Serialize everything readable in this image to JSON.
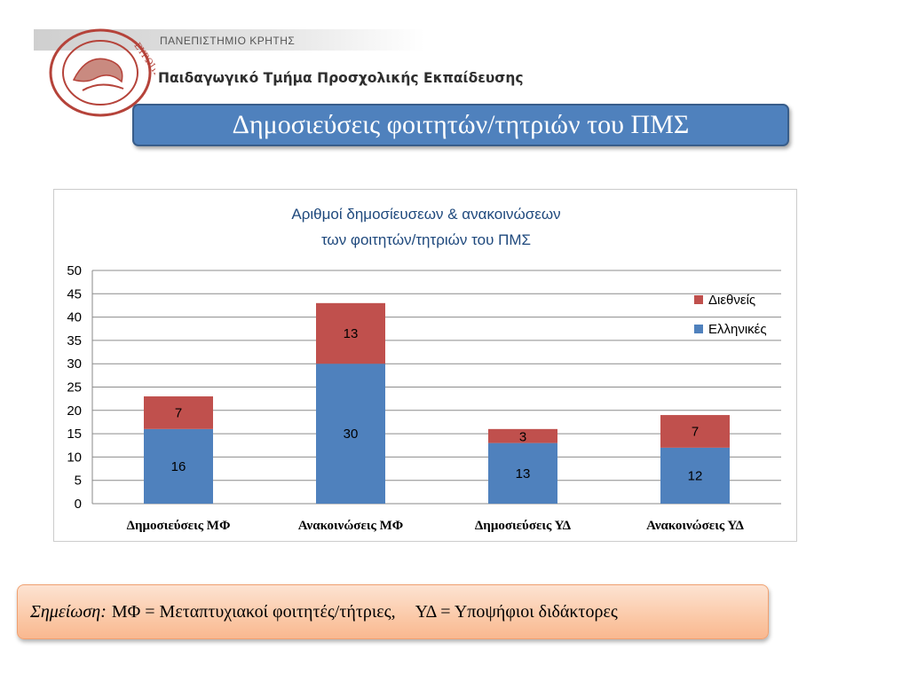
{
  "header": {
    "university": "ΠΑΝΕΠΙΣΤΗΜΙΟ ΚΡΗΤΗΣ",
    "department": "Παιδαγωγικό Τμήμα  Προσχολικής Εκπαίδευσης",
    "logo_text": "ΕΥΡΩΠΗ"
  },
  "slide_title": "Δημοσιεύσεις φοιτητών/τητριών του ΠΜΣ",
  "chart_data": {
    "type": "bar",
    "stacked": true,
    "title": [
      "Αριθμοί δημοσίευσεων & ανακοινώσεων",
      "των φοιτητών/τητριών του ΠΜΣ"
    ],
    "categories": [
      "Δημοσιεύσεις ΜΦ",
      "Ανακοινώσεις ΜΦ",
      "Δημοσιεύσεις ΥΔ",
      "Ανακοινώσεις ΥΔ"
    ],
    "series": [
      {
        "name": "Ελληνικές",
        "values": [
          16,
          30,
          13,
          12
        ],
        "color": "#4f81bd"
      },
      {
        "name": "Διεθνείς",
        "values": [
          7,
          13,
          3,
          7
        ],
        "color": "#c0504d"
      }
    ],
    "ylim": [
      0,
      50
    ],
    "yticks": [
      0,
      5,
      10,
      15,
      20,
      25,
      30,
      35,
      40,
      45,
      50
    ],
    "grid": true,
    "legend_position": "right",
    "data_labels": true
  },
  "note": {
    "label": "Σημείωση:",
    "part1": "ΜΦ = Μεταπτυχιακοί φοιτητές/τήτριες,",
    "part2": "ΥΔ = Υποψήφιοι διδάκτορες"
  }
}
